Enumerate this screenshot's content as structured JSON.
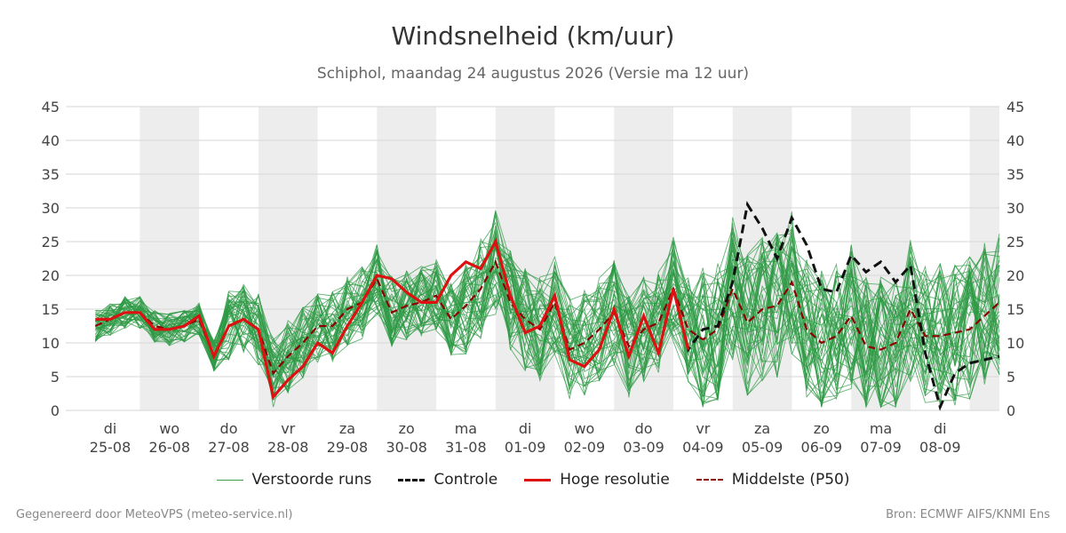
{
  "title": "Windsnelheid (km/uur)",
  "subtitle": "Schiphol, maandag 24 augustus 2026 (Versie ma 12 uur)",
  "footer": {
    "left": "Gegenereerd door MeteoVPS (meteo-service.nl)",
    "right": "Bron: ECMWF AIFS/KNMI Ens"
  },
  "legend": [
    {
      "label": "Verstoorde runs",
      "color": "#3a9e4a",
      "style": "thin"
    },
    {
      "label": "Controle",
      "color": "#111111",
      "style": "dashed"
    },
    {
      "label": "Hoge resolutie",
      "color": "#dd1111",
      "style": "solid"
    },
    {
      "label": "Middelste (P50)",
      "color": "#8b0000",
      "style": "dashed"
    }
  ],
  "chart_data": {
    "type": "line",
    "ylim": [
      0,
      45
    ],
    "yticks": [
      0,
      5,
      10,
      15,
      20,
      25,
      30,
      35,
      40,
      45
    ],
    "x_range_days": [
      -0.75,
      15.0
    ],
    "shaded_days": [
      1,
      3,
      5,
      7,
      9,
      11,
      13,
      15
    ],
    "day_labels": [
      {
        "day": "di",
        "date": "25-08"
      },
      {
        "day": "wo",
        "date": "26-08"
      },
      {
        "day": "do",
        "date": "27-08"
      },
      {
        "day": "vr",
        "date": "28-08"
      },
      {
        "day": "za",
        "date": "29-08"
      },
      {
        "day": "zo",
        "date": "30-08"
      },
      {
        "day": "ma",
        "date": "31-08"
      },
      {
        "day": "di",
        "date": "01-09"
      },
      {
        "day": "wo",
        "date": "02-09"
      },
      {
        "day": "do",
        "date": "03-09"
      },
      {
        "day": "vr",
        "date": "04-09"
      },
      {
        "day": "za",
        "date": "05-09"
      },
      {
        "day": "zo",
        "date": "06-09"
      },
      {
        "day": "ma",
        "date": "07-09"
      },
      {
        "day": "di",
        "date": "08-09"
      }
    ],
    "hoge_resolutie": {
      "name": "Hoge resolutie",
      "x": [
        -0.25,
        0,
        0.25,
        0.5,
        0.75,
        1,
        1.25,
        1.5,
        1.75,
        2,
        2.25,
        2.5,
        2.75,
        3,
        3.25,
        3.5,
        3.75,
        4,
        4.25,
        4.5,
        4.75,
        5,
        5.25,
        5.5,
        5.75,
        6,
        6.25,
        6.5,
        6.75,
        7,
        7.25,
        7.5,
        7.75,
        8,
        8.25,
        8.5,
        8.75,
        9,
        9.25,
        9.5,
        9.75
      ],
      "y": [
        13.5,
        13.5,
        14.5,
        14.5,
        12,
        12,
        12.5,
        14,
        8,
        12.5,
        13.5,
        12,
        2,
        4.5,
        6.5,
        10,
        8.5,
        12.5,
        16,
        20,
        19.5,
        17.5,
        16,
        16,
        20,
        22,
        21,
        25,
        17,
        11.5,
        12.5,
        17,
        7.5,
        6.5,
        9,
        15,
        8,
        14,
        8.5,
        18,
        9
      ]
    },
    "controle": {
      "name": "Controle",
      "x": [
        9.5,
        9.75,
        10,
        10.25,
        10.5,
        10.75,
        11,
        11.25,
        11.5,
        11.75,
        12,
        12.25,
        12.5,
        12.75,
        13,
        13.25,
        13.5,
        13.75,
        14,
        14.25,
        14.5,
        14.75,
        15
      ],
      "y": [
        18,
        9,
        12,
        12.5,
        19,
        30.5,
        27,
        22.5,
        28.5,
        24.5,
        18,
        17.5,
        23,
        20.5,
        22,
        19,
        21.5,
        8.5,
        0.5,
        5.5,
        7,
        7.5,
        8
      ]
    },
    "p50": {
      "name": "Middelste (P50)",
      "x": [
        -0.25,
        0,
        0.25,
        0.5,
        0.75,
        1,
        1.25,
        1.5,
        1.75,
        2,
        2.25,
        2.5,
        2.75,
        3,
        3.25,
        3.5,
        3.75,
        4,
        4.25,
        4.5,
        4.75,
        5,
        5.25,
        5.5,
        5.75,
        6,
        6.25,
        6.5,
        6.75,
        7,
        7.25,
        7.5,
        7.75,
        8,
        8.25,
        8.5,
        8.75,
        9,
        9.25,
        9.5,
        9.75,
        10,
        10.25,
        10.5,
        10.75,
        11,
        11.25,
        11.5,
        11.75,
        12,
        12.25,
        12.5,
        12.75,
        13,
        13.25,
        13.5,
        13.75,
        14,
        14.25,
        14.5,
        15
      ],
      "y": [
        12.5,
        13.5,
        14.5,
        14.5,
        12.5,
        12,
        12.5,
        13.5,
        8,
        12.5,
        13.5,
        12,
        5.5,
        8,
        10,
        12.5,
        12.5,
        15,
        16,
        19.5,
        14.5,
        15.5,
        16,
        17,
        13.5,
        15.5,
        18,
        22,
        16,
        13.5,
        12,
        16,
        9,
        10,
        12,
        14.5,
        9.5,
        12,
        13,
        18,
        12,
        10.5,
        12,
        18,
        13,
        15,
        15.5,
        19,
        12,
        10,
        11,
        14,
        9.5,
        9,
        10,
        15,
        11,
        11,
        11.5,
        12,
        16
      ]
    }
  }
}
